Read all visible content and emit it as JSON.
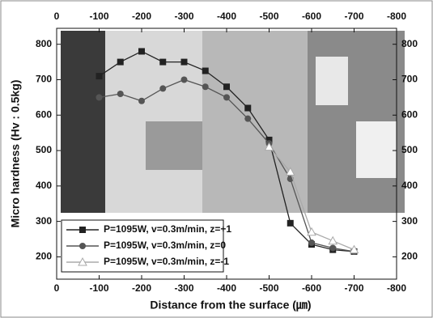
{
  "chart_data": {
    "type": "line",
    "y_label": "Micro hardness (Hv : 0.5kg)",
    "x_label": "Distance from the surface (㎛)",
    "xlim": [
      0,
      -800
    ],
    "xticks": [
      0,
      -100,
      -200,
      -300,
      -400,
      -500,
      -600,
      -700,
      -800
    ],
    "ylim": [
      137,
      845
    ],
    "yticks": [
      200,
      300,
      400,
      500,
      600,
      700,
      800
    ],
    "series": [
      {
        "name": "P=1095W, v=0.3m/min, z=+1",
        "color": "#222222",
        "marker": "square",
        "x": [
          -100,
          -150,
          -200,
          -250,
          -300,
          -350,
          -400,
          -450,
          -500,
          -550,
          -600,
          -650,
          -700
        ],
        "values": [
          710,
          750,
          780,
          750,
          750,
          725,
          680,
          620,
          530,
          295,
          235,
          220,
          215
        ]
      },
      {
        "name": "P=1095W, v=0.3m/min, z=0",
        "color": "#555555",
        "marker": "circle",
        "x": [
          -100,
          -150,
          -200,
          -250,
          -300,
          -350,
          -400,
          -450,
          -500,
          -550,
          -600,
          -650,
          -700
        ],
        "values": [
          650,
          660,
          640,
          675,
          700,
          680,
          650,
          590,
          520,
          420,
          240,
          225,
          215
        ]
      },
      {
        "name": "P=1095W, v=0.3m/min, z=-1",
        "color": "#aaaaaa",
        "marker": "triangle",
        "x": [
          -500,
          -550,
          -600,
          -650,
          -700
        ],
        "values": [
          510,
          440,
          270,
          245,
          220
        ]
      }
    ]
  }
}
